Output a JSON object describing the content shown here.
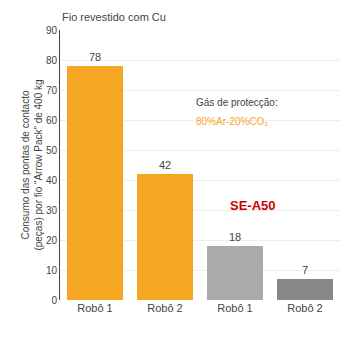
{
  "chart_data": {
    "type": "bar",
    "categories": [
      "Robô 1",
      "Robô 2",
      "Robô 1",
      "Robô 2"
    ],
    "values": [
      78,
      42,
      18,
      7
    ],
    "colors": [
      "#F5A623",
      "#F5A623",
      "#AAAAAA",
      "#888888"
    ],
    "ylabel": "Consumo das pontas de contacto\n(peças) por fio “Arrow Pack” de 400 kg",
    "ylim": [
      0,
      90
    ],
    "yticks": [
      0,
      10,
      20,
      30,
      40,
      50,
      60,
      70,
      80,
      90
    ],
    "grid": true,
    "data_labels": true,
    "annotations": [
      {
        "text": "Fio revestido com Cu"
      },
      {
        "text": "Gás de protecção:"
      },
      {
        "text": "80%Ar-20%CO₂",
        "color": "#F5A623"
      },
      {
        "text": "SE-A50",
        "color": "#cc0000"
      }
    ]
  }
}
